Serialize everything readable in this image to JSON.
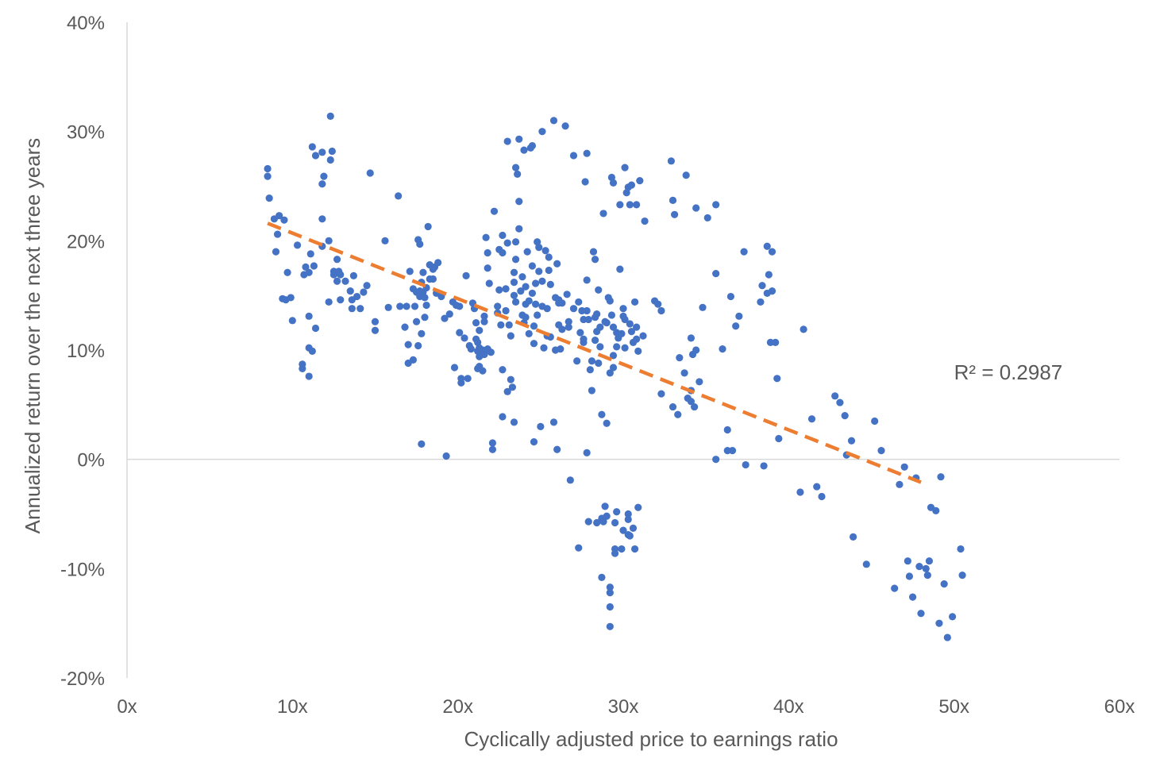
{
  "chart_data": {
    "type": "scatter",
    "xlabel": "Cyclically adjusted price to earnings ratio",
    "ylabel": "Annualized return over the next three years",
    "xlim": [
      0,
      60
    ],
    "ylim": [
      -20,
      40
    ],
    "x_ticks": [
      0,
      10,
      20,
      30,
      40,
      50,
      60
    ],
    "x_tick_labels": [
      "0x",
      "10x",
      "20x",
      "30x",
      "40x",
      "50x",
      "60x"
    ],
    "y_ticks": [
      -20,
      -10,
      0,
      10,
      20,
      30,
      40
    ],
    "y_tick_labels": [
      "-20%",
      "-10%",
      "0%",
      "10%",
      "20%",
      "30%",
      "40%"
    ],
    "grid": false,
    "zero_line": true,
    "point_color": "#4472C4",
    "trendline": {
      "type": "linear",
      "x": [
        8.5,
        48.0
      ],
      "y": [
        21.6,
        -2.1
      ],
      "color": "#ED7D31",
      "style": "dashed",
      "label": "R² = 0.2987"
    },
    "points": [
      [
        8.5,
        26.6
      ],
      [
        8.5,
        25.9
      ],
      [
        8.6,
        23.9
      ],
      [
        8.9,
        22.0
      ],
      [
        9.2,
        22.3
      ],
      [
        9.5,
        21.9
      ],
      [
        9.1,
        20.6
      ],
      [
        9.0,
        19.0
      ],
      [
        9.7,
        17.1
      ],
      [
        9.4,
        14.7
      ],
      [
        9.6,
        14.6
      ],
      [
        9.9,
        14.8
      ],
      [
        10.0,
        12.7
      ],
      [
        10.3,
        19.6
      ],
      [
        10.7,
        16.9
      ],
      [
        10.8,
        17.6
      ],
      [
        11.0,
        17.1
      ],
      [
        10.6,
        8.7
      ],
      [
        10.6,
        8.3
      ],
      [
        11.0,
        7.6
      ],
      [
        11.0,
        10.2
      ],
      [
        11.2,
        9.9
      ],
      [
        11.0,
        13.1
      ],
      [
        11.4,
        12.0
      ],
      [
        11.3,
        17.7
      ],
      [
        11.1,
        18.8
      ],
      [
        11.2,
        28.6
      ],
      [
        11.4,
        27.8
      ],
      [
        11.8,
        28.1
      ],
      [
        11.8,
        25.2
      ],
      [
        11.9,
        25.9
      ],
      [
        11.8,
        22.0
      ],
      [
        11.8,
        19.5
      ],
      [
        12.2,
        20.0
      ],
      [
        12.3,
        31.4
      ],
      [
        12.4,
        28.2
      ],
      [
        12.3,
        27.4
      ],
      [
        12.5,
        17.2
      ],
      [
        12.5,
        16.9
      ],
      [
        12.2,
        14.4
      ],
      [
        12.7,
        16.3
      ],
      [
        12.9,
        16.9
      ],
      [
        12.8,
        17.2
      ],
      [
        12.7,
        18.3
      ],
      [
        12.9,
        14.6
      ],
      [
        13.2,
        16.3
      ],
      [
        13.5,
        15.4
      ],
      [
        13.6,
        14.6
      ],
      [
        13.6,
        13.8
      ],
      [
        13.7,
        16.8
      ],
      [
        13.9,
        14.9
      ],
      [
        14.1,
        13.8
      ],
      [
        14.3,
        15.3
      ],
      [
        14.5,
        15.9
      ],
      [
        14.7,
        26.2
      ],
      [
        15.0,
        12.6
      ],
      [
        15.0,
        11.8
      ],
      [
        15.6,
        20.0
      ],
      [
        15.8,
        13.9
      ],
      [
        16.4,
        24.1
      ],
      [
        16.5,
        14.0
      ],
      [
        16.8,
        12.1
      ],
      [
        17.0,
        10.5
      ],
      [
        17.0,
        8.8
      ],
      [
        16.9,
        14.0
      ],
      [
        17.1,
        17.2
      ],
      [
        17.3,
        9.1
      ],
      [
        17.3,
        15.6
      ],
      [
        17.4,
        14.0
      ],
      [
        17.5,
        15.3
      ],
      [
        17.5,
        12.6
      ],
      [
        17.6,
        10.4
      ],
      [
        17.7,
        15.4
      ],
      [
        17.7,
        14.9
      ],
      [
        17.8,
        16.2
      ],
      [
        17.9,
        17.1
      ],
      [
        17.8,
        11.5
      ],
      [
        17.6,
        20.1
      ],
      [
        17.7,
        19.7
      ],
      [
        17.9,
        15.3
      ],
      [
        18.0,
        13.0
      ],
      [
        17.8,
        1.4
      ],
      [
        18.0,
        14.8
      ],
      [
        18.1,
        15.7
      ],
      [
        18.2,
        21.3
      ],
      [
        18.3,
        17.8
      ],
      [
        18.1,
        14.1
      ],
      [
        18.3,
        16.5
      ],
      [
        18.5,
        17.4
      ],
      [
        18.5,
        16.5
      ],
      [
        18.6,
        17.6
      ],
      [
        18.7,
        15.2
      ],
      [
        18.8,
        18.0
      ],
      [
        19.0,
        14.9
      ],
      [
        19.2,
        12.9
      ],
      [
        19.3,
        0.3
      ],
      [
        19.5,
        13.3
      ],
      [
        19.7,
        14.4
      ],
      [
        19.8,
        8.4
      ],
      [
        19.9,
        14.1
      ],
      [
        20.1,
        14.0
      ],
      [
        20.1,
        11.6
      ],
      [
        20.2,
        7.0
      ],
      [
        20.2,
        7.4
      ],
      [
        20.4,
        11.1
      ],
      [
        20.5,
        16.8
      ],
      [
        20.6,
        7.4
      ],
      [
        20.7,
        10.4
      ],
      [
        20.8,
        10.1
      ],
      [
        20.9,
        14.3
      ],
      [
        21.0,
        13.8
      ],
      [
        21.1,
        12.5
      ],
      [
        21.1,
        11.0
      ],
      [
        21.2,
        10.7
      ],
      [
        21.2,
        9.9
      ],
      [
        21.3,
        11.8
      ],
      [
        21.3,
        10.2
      ],
      [
        21.3,
        9.4
      ],
      [
        21.2,
        8.3
      ],
      [
        21.3,
        8.5
      ],
      [
        21.5,
        8.1
      ],
      [
        21.5,
        10.0
      ],
      [
        21.6,
        9.6
      ],
      [
        21.6,
        12.6
      ],
      [
        21.6,
        13.1
      ],
      [
        21.7,
        20.3
      ],
      [
        21.8,
        18.9
      ],
      [
        21.8,
        17.5
      ],
      [
        21.9,
        16.1
      ],
      [
        21.8,
        10.1
      ],
      [
        22.0,
        9.8
      ],
      [
        22.1,
        1.5
      ],
      [
        22.1,
        0.9
      ],
      [
        22.2,
        22.7
      ],
      [
        22.4,
        14.0
      ],
      [
        22.4,
        13.4
      ],
      [
        22.5,
        15.5
      ],
      [
        22.5,
        19.2
      ],
      [
        22.7,
        20.5
      ],
      [
        22.7,
        18.9
      ],
      [
        22.6,
        12.3
      ],
      [
        22.7,
        8.2
      ],
      [
        22.7,
        3.9
      ],
      [
        22.9,
        13.6
      ],
      [
        22.9,
        15.6
      ],
      [
        23.0,
        6.2
      ],
      [
        23.0,
        19.8
      ],
      [
        23.0,
        29.1
      ],
      [
        23.1,
        12.3
      ],
      [
        23.2,
        11.3
      ],
      [
        23.2,
        7.3
      ],
      [
        23.3,
        6.6
      ],
      [
        23.4,
        3.4
      ],
      [
        23.4,
        15.0
      ],
      [
        23.4,
        16.2
      ],
      [
        23.4,
        17.1
      ],
      [
        23.5,
        18.3
      ],
      [
        23.5,
        19.9
      ],
      [
        23.5,
        14.4
      ],
      [
        23.5,
        26.7
      ],
      [
        23.6,
        26.1
      ],
      [
        23.7,
        23.6
      ],
      [
        23.7,
        21.1
      ],
      [
        23.7,
        29.3
      ],
      [
        23.8,
        15.4
      ],
      [
        23.9,
        16.7
      ],
      [
        23.9,
        13.2
      ],
      [
        24.0,
        28.3
      ],
      [
        24.0,
        12.5
      ],
      [
        24.1,
        15.8
      ],
      [
        24.1,
        14.2
      ],
      [
        24.1,
        13.0
      ],
      [
        24.2,
        19.0
      ],
      [
        24.3,
        14.5
      ],
      [
        24.3,
        11.5
      ],
      [
        24.4,
        28.5
      ],
      [
        24.5,
        28.7
      ],
      [
        24.5,
        17.7
      ],
      [
        24.5,
        15.2
      ],
      [
        24.6,
        12.2
      ],
      [
        24.6,
        10.6
      ],
      [
        24.6,
        1.6
      ],
      [
        24.7,
        16.1
      ],
      [
        24.7,
        14.2
      ],
      [
        24.8,
        13.2
      ],
      [
        24.8,
        19.9
      ],
      [
        24.9,
        19.4
      ],
      [
        24.9,
        17.2
      ],
      [
        25.0,
        3.0
      ],
      [
        25.1,
        30.0
      ],
      [
        25.1,
        16.3
      ],
      [
        25.1,
        14.0
      ],
      [
        25.2,
        10.2
      ],
      [
        25.3,
        19.1
      ],
      [
        25.4,
        13.8
      ],
      [
        25.4,
        11.3
      ],
      [
        25.5,
        18.5
      ],
      [
        25.5,
        17.3
      ],
      [
        25.6,
        16.0
      ],
      [
        25.6,
        11.2
      ],
      [
        25.8,
        31.0
      ],
      [
        25.9,
        14.8
      ],
      [
        25.9,
        10.0
      ],
      [
        26.0,
        17.9
      ],
      [
        26.1,
        14.6
      ],
      [
        26.1,
        14.3
      ],
      [
        26.1,
        12.3
      ],
      [
        25.8,
        3.4
      ],
      [
        26.0,
        0.9
      ],
      [
        26.3,
        14.3
      ],
      [
        26.3,
        11.9
      ],
      [
        26.2,
        10.1
      ],
      [
        26.5,
        30.5
      ],
      [
        26.6,
        15.1
      ],
      [
        26.7,
        12.1
      ],
      [
        26.7,
        12.6
      ],
      [
        26.8,
        -1.9
      ],
      [
        27.0,
        27.8
      ],
      [
        27.0,
        13.8
      ],
      [
        27.3,
        14.4
      ],
      [
        27.4,
        11.6
      ],
      [
        27.2,
        9.0
      ],
      [
        27.3,
        -8.1
      ],
      [
        27.5,
        13.6
      ],
      [
        27.6,
        12.8
      ],
      [
        27.6,
        11.0
      ],
      [
        27.6,
        10.7
      ],
      [
        27.7,
        25.4
      ],
      [
        27.8,
        28.0
      ],
      [
        27.8,
        16.4
      ],
      [
        27.8,
        13.6
      ],
      [
        27.8,
        0.6
      ],
      [
        27.9,
        12.8
      ],
      [
        27.9,
        -5.7
      ],
      [
        28.0,
        8.2
      ],
      [
        28.1,
        9.0
      ],
      [
        28.1,
        6.3
      ],
      [
        28.2,
        19.0
      ],
      [
        28.3,
        18.3
      ],
      [
        28.3,
        10.9
      ],
      [
        28.3,
        13.0
      ],
      [
        28.4,
        13.3
      ],
      [
        28.4,
        11.7
      ],
      [
        28.4,
        -5.8
      ],
      [
        28.5,
        8.8
      ],
      [
        28.5,
        15.5
      ],
      [
        28.6,
        12.1
      ],
      [
        28.6,
        10.3
      ],
      [
        28.7,
        4.1
      ],
      [
        28.7,
        -5.4
      ],
      [
        28.7,
        -10.8
      ],
      [
        28.8,
        22.5
      ],
      [
        28.8,
        -5.7
      ],
      [
        28.9,
        12.6
      ],
      [
        28.9,
        -4.3
      ],
      [
        29.0,
        12.5
      ],
      [
        29.0,
        3.3
      ],
      [
        29.0,
        -5.2
      ],
      [
        29.1,
        14.8
      ],
      [
        29.2,
        14.5
      ],
      [
        29.2,
        7.9
      ],
      [
        29.2,
        -12.2
      ],
      [
        29.2,
        -11.7
      ],
      [
        29.2,
        -13.5
      ],
      [
        29.2,
        -15.3
      ],
      [
        29.3,
        25.8
      ],
      [
        29.3,
        13.2
      ],
      [
        29.4,
        25.3
      ],
      [
        29.4,
        12.1
      ],
      [
        29.4,
        9.5
      ],
      [
        29.4,
        8.4
      ],
      [
        29.5,
        -5.8
      ],
      [
        29.5,
        -8.2
      ],
      [
        29.5,
        -8.6
      ],
      [
        29.6,
        10.3
      ],
      [
        29.6,
        11.6
      ],
      [
        29.6,
        -4.8
      ],
      [
        29.7,
        11.1
      ],
      [
        29.8,
        23.3
      ],
      [
        29.8,
        17.4
      ],
      [
        29.9,
        11.5
      ],
      [
        29.9,
        -8.2
      ],
      [
        30.0,
        13.8
      ],
      [
        30.0,
        13.1
      ],
      [
        30.0,
        -6.5
      ],
      [
        30.1,
        26.7
      ],
      [
        30.1,
        12.8
      ],
      [
        30.1,
        10.2
      ],
      [
        30.2,
        24.4
      ],
      [
        30.3,
        24.9
      ],
      [
        30.3,
        -5.0
      ],
      [
        30.3,
        -5.5
      ],
      [
        30.3,
        -6.9
      ],
      [
        30.4,
        23.3
      ],
      [
        30.4,
        12.4
      ],
      [
        30.4,
        -7.0
      ],
      [
        30.5,
        25.1
      ],
      [
        30.5,
        11.7
      ],
      [
        30.6,
        10.7
      ],
      [
        30.6,
        -6.3
      ],
      [
        30.7,
        14.4
      ],
      [
        30.7,
        -8.2
      ],
      [
        30.8,
        23.3
      ],
      [
        30.8,
        12.1
      ],
      [
        30.8,
        11.0
      ],
      [
        30.9,
        9.9
      ],
      [
        30.9,
        -4.4
      ],
      [
        31.0,
        25.5
      ],
      [
        31.2,
        11.3
      ],
      [
        31.3,
        21.8
      ],
      [
        31.9,
        14.5
      ],
      [
        32.1,
        14.2
      ],
      [
        32.3,
        6.0
      ],
      [
        32.3,
        13.6
      ],
      [
        32.9,
        27.3
      ],
      [
        33.0,
        23.7
      ],
      [
        33.0,
        4.8
      ],
      [
        33.1,
        22.4
      ],
      [
        33.3,
        4.1
      ],
      [
        33.4,
        9.3
      ],
      [
        33.7,
        7.9
      ],
      [
        33.8,
        26.0
      ],
      [
        33.9,
        5.6
      ],
      [
        34.1,
        6.3
      ],
      [
        34.1,
        5.3
      ],
      [
        34.1,
        11.1
      ],
      [
        34.2,
        9.6
      ],
      [
        34.3,
        4.8
      ],
      [
        34.4,
        10.0
      ],
      [
        34.4,
        23.0
      ],
      [
        34.6,
        7.1
      ],
      [
        34.8,
        13.9
      ],
      [
        35.1,
        22.1
      ],
      [
        35.6,
        17.0
      ],
      [
        35.6,
        23.3
      ],
      [
        35.6,
        0.0
      ],
      [
        36.0,
        10.1
      ],
      [
        36.3,
        2.7
      ],
      [
        36.3,
        0.8
      ],
      [
        36.5,
        14.9
      ],
      [
        36.6,
        0.8
      ],
      [
        36.8,
        12.2
      ],
      [
        37.0,
        13.1
      ],
      [
        37.3,
        19.0
      ],
      [
        37.4,
        -0.5
      ],
      [
        38.3,
        14.4
      ],
      [
        38.4,
        15.9
      ],
      [
        38.5,
        -0.6
      ],
      [
        38.7,
        19.5
      ],
      [
        38.7,
        15.2
      ],
      [
        38.8,
        16.9
      ],
      [
        38.9,
        10.7
      ],
      [
        39.0,
        19.0
      ],
      [
        39.0,
        15.4
      ],
      [
        39.2,
        10.7
      ],
      [
        39.3,
        7.4
      ],
      [
        39.4,
        1.9
      ],
      [
        40.7,
        -3.0
      ],
      [
        40.9,
        11.9
      ],
      [
        41.4,
        3.7
      ],
      [
        41.7,
        -2.5
      ],
      [
        42.0,
        -3.4
      ],
      [
        42.8,
        5.8
      ],
      [
        43.1,
        5.2
      ],
      [
        43.4,
        4.0
      ],
      [
        43.5,
        0.4
      ],
      [
        43.8,
        1.7
      ],
      [
        43.9,
        -7.1
      ],
      [
        44.7,
        -9.6
      ],
      [
        45.2,
        3.5
      ],
      [
        45.6,
        0.8
      ],
      [
        46.4,
        -11.8
      ],
      [
        46.7,
        -2.3
      ],
      [
        47.0,
        -0.7
      ],
      [
        47.2,
        -9.3
      ],
      [
        47.3,
        -10.7
      ],
      [
        47.5,
        -12.6
      ],
      [
        47.7,
        -1.7
      ],
      [
        47.9,
        -9.8
      ],
      [
        48.0,
        -14.1
      ],
      [
        48.3,
        -10.0
      ],
      [
        48.4,
        -10.6
      ],
      [
        48.5,
        -9.3
      ],
      [
        48.6,
        -4.4
      ],
      [
        48.9,
        -4.7
      ],
      [
        49.1,
        -15.0
      ],
      [
        49.2,
        -1.6
      ],
      [
        49.4,
        -11.4
      ],
      [
        49.6,
        -16.3
      ],
      [
        49.9,
        -14.4
      ],
      [
        50.4,
        -8.2
      ],
      [
        50.5,
        -10.6
      ]
    ],
    "annotations": [
      {
        "text": "R² = 0.2987",
        "x": 50,
        "y": 7.3
      }
    ]
  }
}
